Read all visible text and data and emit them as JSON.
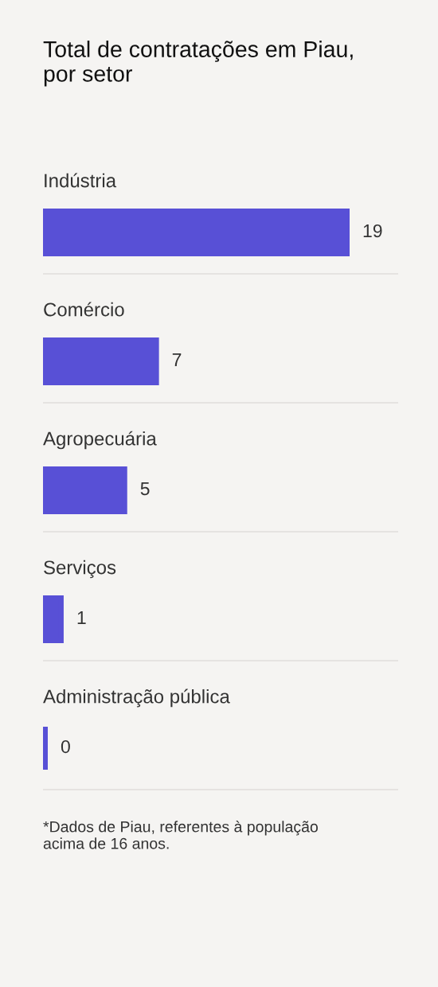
{
  "chart_data": {
    "type": "bar",
    "orientation": "horizontal",
    "title": "Total de contratações em Piau,\npor setor",
    "categories": [
      "Indústria",
      "Comércio",
      "Agropecuária",
      "Serviços",
      "Administração pública"
    ],
    "values": [
      19,
      7,
      5,
      1,
      0
    ],
    "color": "#5850d6",
    "data_labels": true,
    "grid": "y",
    "annotations": [
      "*Dados de Piau, referentes à população\nacima de 16 anos."
    ]
  }
}
